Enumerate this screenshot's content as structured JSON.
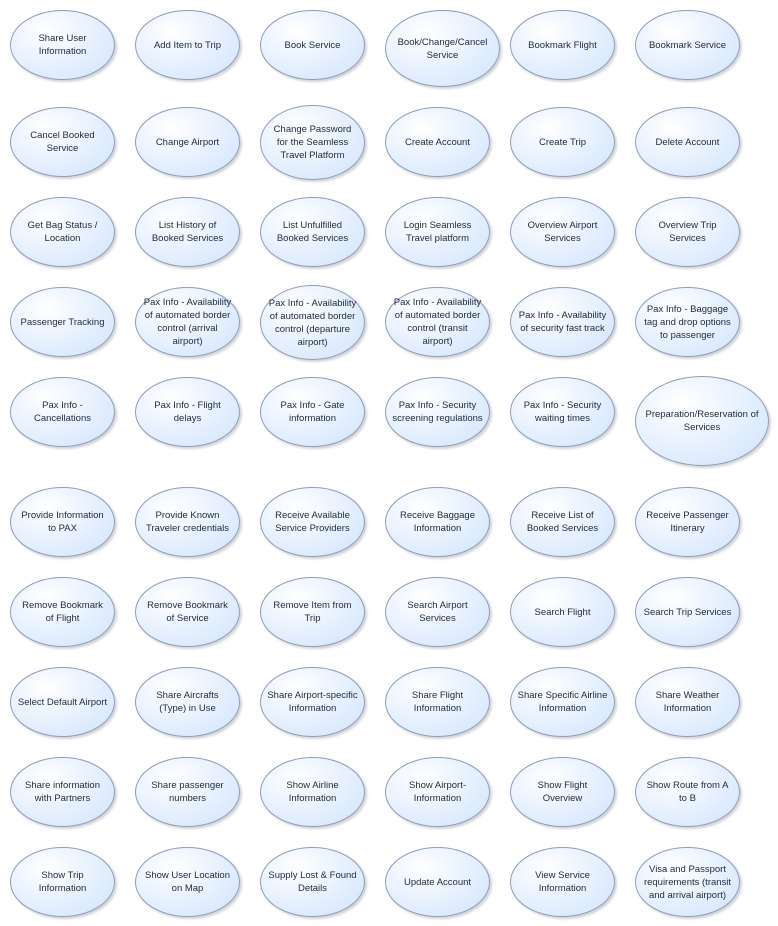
{
  "use_cases": [
    "Share User Information",
    "Add Item to Trip",
    "Book Service",
    "Book/Change/Cancel Service",
    "Bookmark Flight",
    "Bookmark Service",
    "Cancel Booked Service",
    "Change Airport",
    "Change Password for the Seamless Travel Platform",
    "Create Account",
    "Create Trip",
    "Delete Account",
    "Get Bag Status / Location",
    "List History of Booked Services",
    "List Unfulfilled Booked Services",
    "Login Seamless Travel platform",
    "Overview Airport Services",
    "Overview Trip Services",
    "Passenger Tracking",
    "Pax Info - Availability of automated border control (arrival airport)",
    "Pax Info - Availability of automated border control (departure airport)",
    "Pax Info - Availability of automated border control (transit airport)",
    "Pax Info - Availability of security fast track",
    "Pax Info - Baggage tag and drop options to passenger",
    "Pax Info - Cancellations",
    "Pax Info - Flight delays",
    "Pax Info - Gate information",
    "Pax Info - Security screening regulations",
    "Pax Info - Security waiting times",
    "Preparation/Reservation of Services",
    "Provide Information to PAX",
    "Provide Known Traveler credentials",
    "Receive Available Service Providers",
    "Receive Baggage Information",
    "Receive List of Booked Services",
    "Receive Passenger Itinerary",
    "Remove Bookmark of Flight",
    "Remove Bookmark of Service",
    "Remove Item from Trip",
    "Search Airport Services",
    "Search Flight",
    "Search Trip Services",
    "Select Default Airport",
    "Share Aircrafts (Type) in Use",
    "Share Airport-specific Information",
    "Share Flight Information",
    "Share Specific Airline Information",
    "Share Weather Information",
    "Share information with Partners",
    "Share passenger numbers",
    "Show Airline Information",
    "Show Airport-Information",
    "Show Flight Overview",
    "Show Route from A to B",
    "Show Trip Information",
    "Show User Location on Map",
    "Supply Lost & Found Details",
    "Update Account",
    "View Service Information",
    "Visa and Passport requirements (transit and arrival airport)"
  ]
}
